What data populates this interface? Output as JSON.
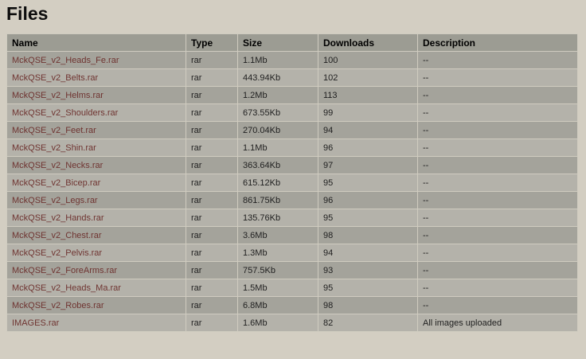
{
  "page": {
    "title": "Files"
  },
  "colors": {
    "page_background": "#d3cec2",
    "header_row_background": "#9c9c93",
    "row_dark_background": "#a4a39b",
    "row_light_background": "#b4b2aa",
    "cell_border": "#d0ccc0",
    "file_link_color": "#6f3431",
    "text_color": "#1f1f1f"
  },
  "table": {
    "columns": [
      {
        "key": "name",
        "label": "Name"
      },
      {
        "key": "type",
        "label": "Type"
      },
      {
        "key": "size",
        "label": "Size"
      },
      {
        "key": "downloads",
        "label": "Downloads"
      },
      {
        "key": "description",
        "label": "Description"
      }
    ],
    "rows": [
      {
        "name": "MckQSE_v2_Heads_Fe.rar",
        "type": "rar",
        "size": "1.1Mb",
        "downloads": "100",
        "description": "--"
      },
      {
        "name": "MckQSE_v2_Belts.rar",
        "type": "rar",
        "size": "443.94Kb",
        "downloads": "102",
        "description": "--"
      },
      {
        "name": "MckQSE_v2_Helms.rar",
        "type": "rar",
        "size": "1.2Mb",
        "downloads": "113",
        "description": "--"
      },
      {
        "name": "MckQSE_v2_Shoulders.rar",
        "type": "rar",
        "size": "673.55Kb",
        "downloads": "99",
        "description": "--"
      },
      {
        "name": "MckQSE_v2_Feet.rar",
        "type": "rar",
        "size": "270.04Kb",
        "downloads": "94",
        "description": "--"
      },
      {
        "name": "MckQSE_v2_Shin.rar",
        "type": "rar",
        "size": "1.1Mb",
        "downloads": "96",
        "description": "--"
      },
      {
        "name": "MckQSE_v2_Necks.rar",
        "type": "rar",
        "size": "363.64Kb",
        "downloads": "97",
        "description": "--"
      },
      {
        "name": "MckQSE_v2_Bicep.rar",
        "type": "rar",
        "size": "615.12Kb",
        "downloads": "95",
        "description": "--"
      },
      {
        "name": "MckQSE_v2_Legs.rar",
        "type": "rar",
        "size": "861.75Kb",
        "downloads": "96",
        "description": "--"
      },
      {
        "name": "MckQSE_v2_Hands.rar",
        "type": "rar",
        "size": "135.76Kb",
        "downloads": "95",
        "description": "--"
      },
      {
        "name": "MckQSE_v2_Chest.rar",
        "type": "rar",
        "size": "3.6Mb",
        "downloads": "98",
        "description": "--"
      },
      {
        "name": "MckQSE_v2_Pelvis.rar",
        "type": "rar",
        "size": "1.3Mb",
        "downloads": "94",
        "description": "--"
      },
      {
        "name": "MckQSE_v2_ForeArms.rar",
        "type": "rar",
        "size": "757.5Kb",
        "downloads": "93",
        "description": "--"
      },
      {
        "name": "MckQSE_v2_Heads_Ma.rar",
        "type": "rar",
        "size": "1.5Mb",
        "downloads": "95",
        "description": "--"
      },
      {
        "name": "MckQSE_v2_Robes.rar",
        "type": "rar",
        "size": "6.8Mb",
        "downloads": "98",
        "description": "--"
      },
      {
        "name": "IMAGES.rar",
        "type": "rar",
        "size": "1.6Mb",
        "downloads": "82",
        "description": "All images uploaded"
      }
    ]
  }
}
